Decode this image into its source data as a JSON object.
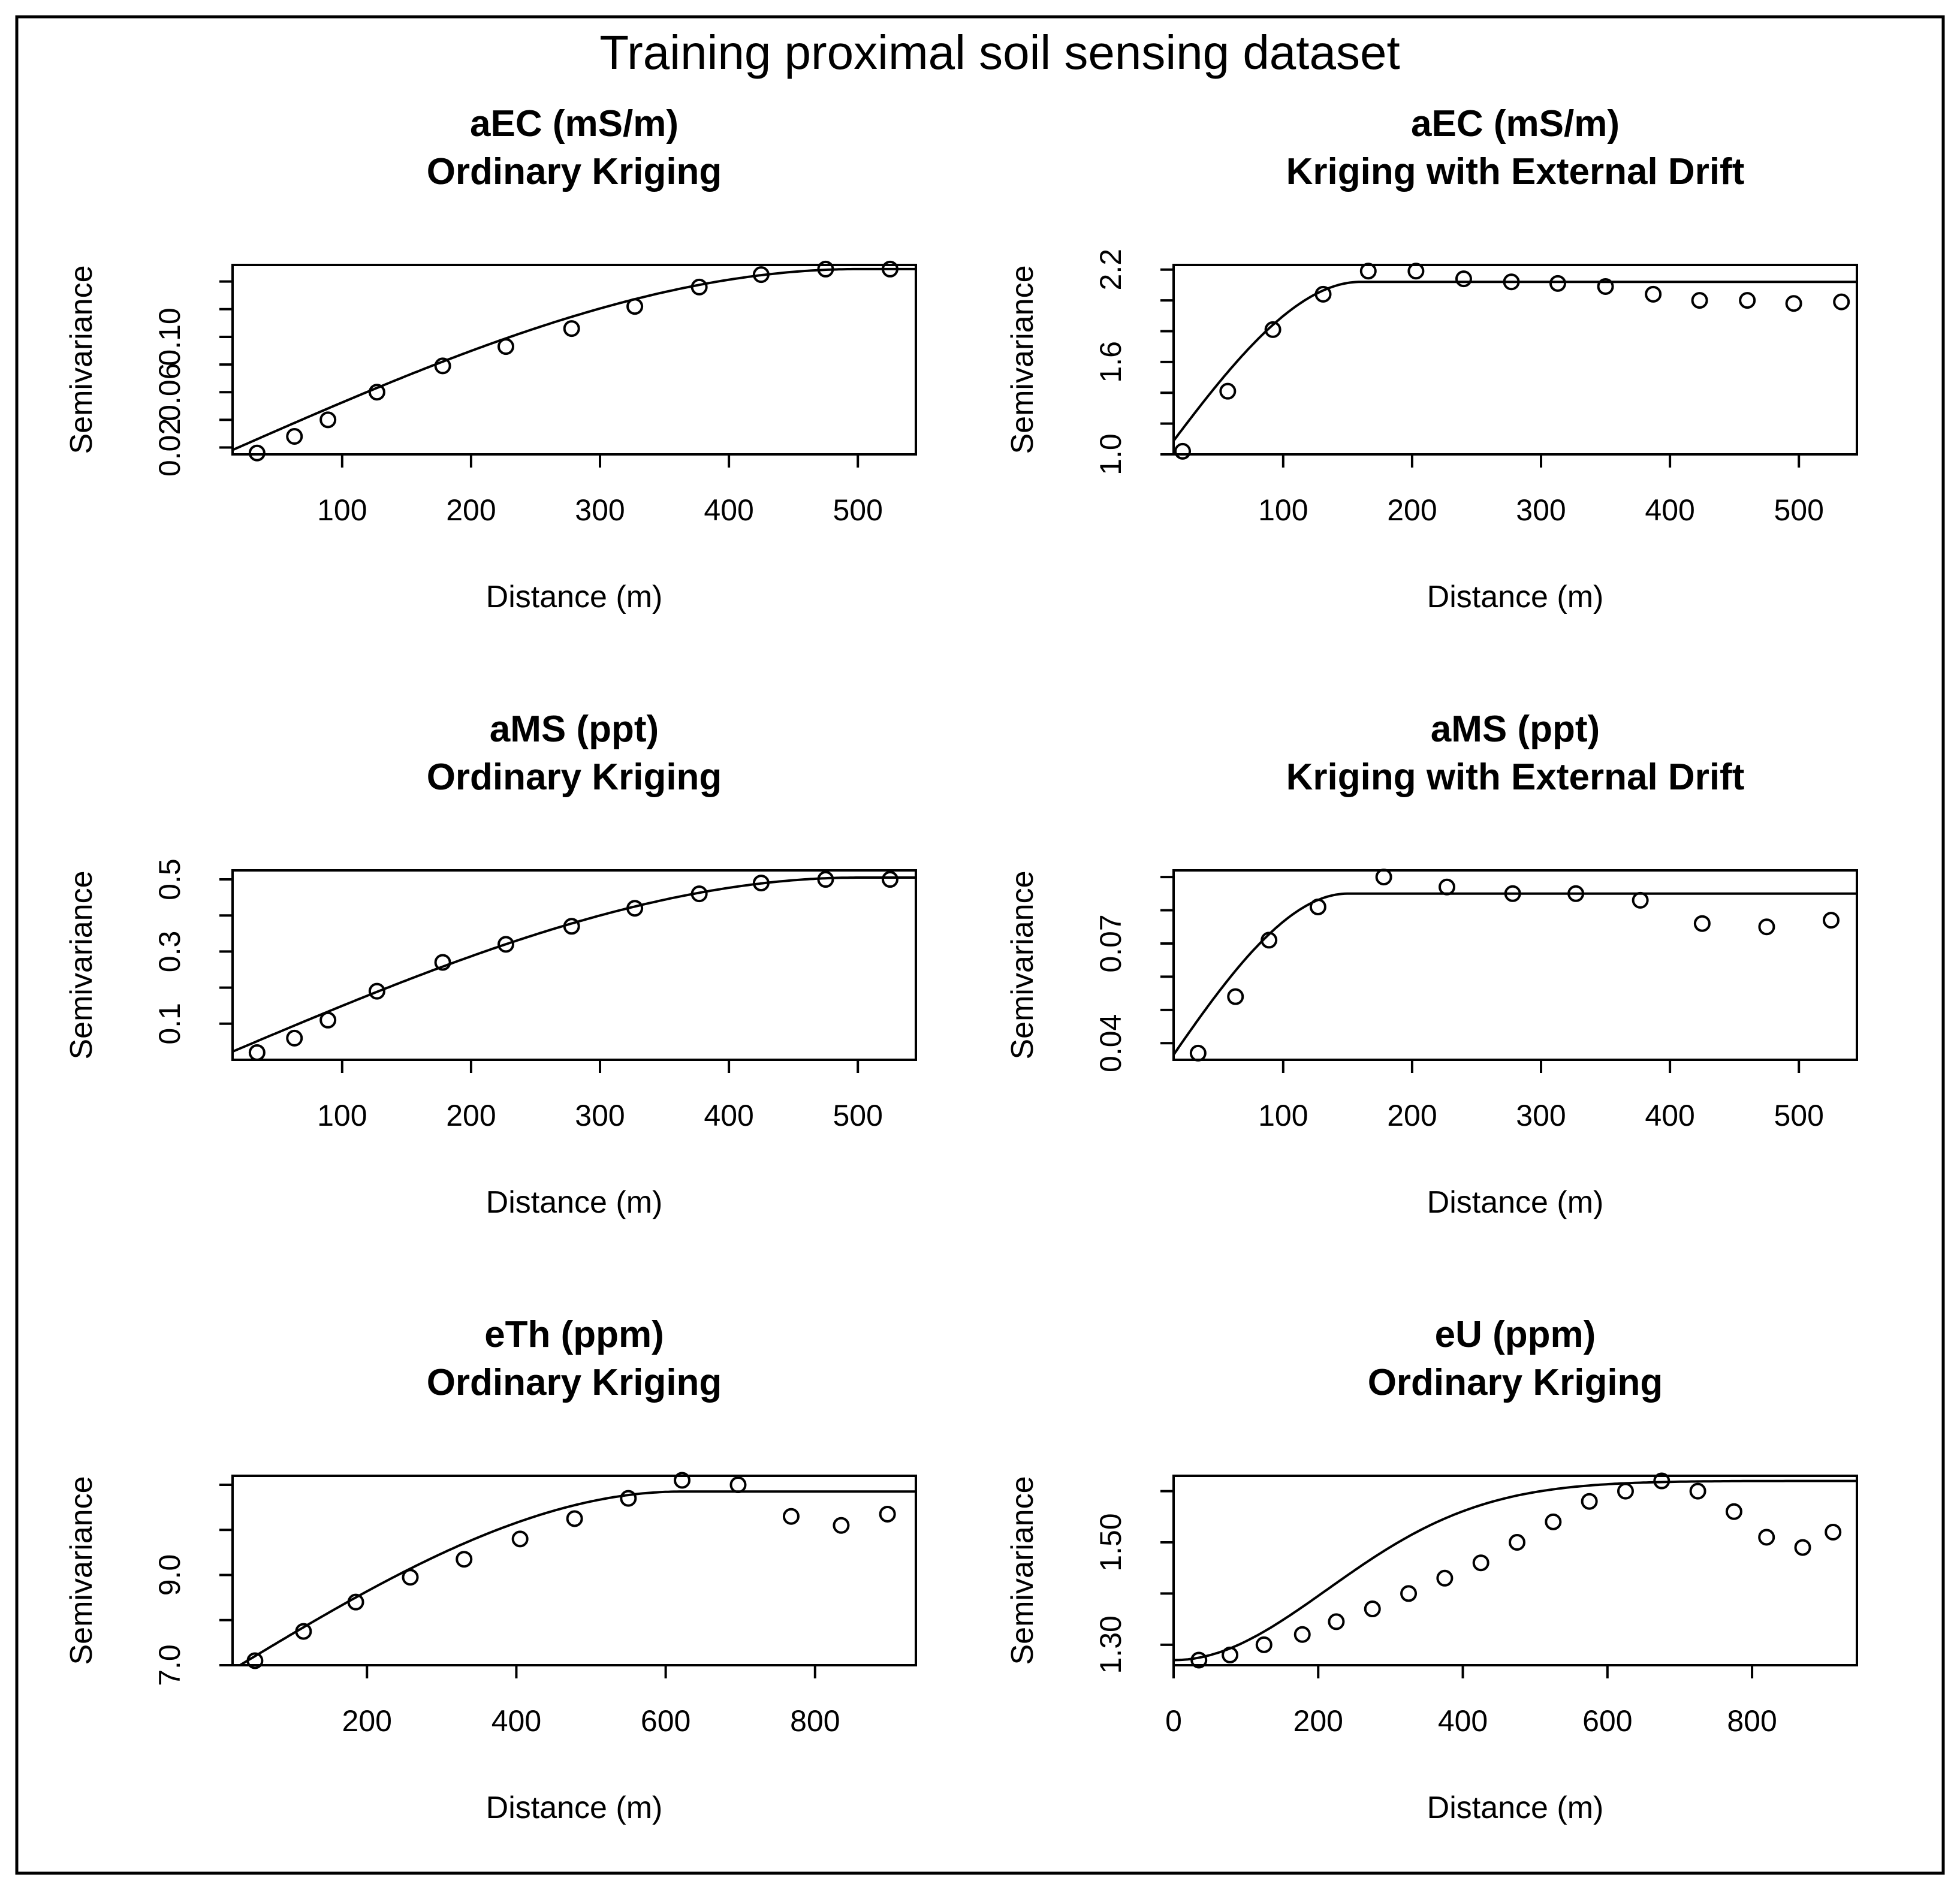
{
  "figure_title": "Training proximal soil sensing dataset",
  "chart_data": [
    {
      "type": "scatter",
      "title": "aEC (mS/m)",
      "subtitle": "Ordinary Kriging",
      "xlabel": "Distance (m)",
      "ylabel": "Semivariance",
      "xlim": [
        15,
        545
      ],
      "ylim": [
        0.015,
        0.152
      ],
      "xticks": [
        100,
        200,
        300,
        400,
        500
      ],
      "yticks": [
        0.02,
        0.04,
        0.06,
        0.08,
        0.1,
        0.12,
        0.14
      ],
      "ytick_labels": [
        "0.02",
        "",
        "0.06",
        "",
        "0.10",
        "",
        ""
      ],
      "points": {
        "x": [
          34,
          63,
          89,
          127,
          178,
          227,
          278,
          327,
          377,
          425,
          475,
          525
        ],
        "y": [
          0.016,
          0.028,
          0.04,
          0.06,
          0.079,
          0.093,
          0.106,
          0.122,
          0.136,
          0.145,
          0.149,
          0.149
        ]
      },
      "model": {
        "type": "spherical",
        "nugget": 0.012,
        "psill": 0.137,
        "range": 500
      }
    },
    {
      "type": "scatter",
      "title": "aEC (mS/m)",
      "subtitle": "Kriging with External Drift",
      "xlabel": "Distance (m)",
      "ylabel": "Semivariance",
      "xlim": [
        15,
        545
      ],
      "ylim": [
        1.0,
        2.23
      ],
      "xticks": [
        100,
        200,
        300,
        400,
        500
      ],
      "yticks": [
        1.0,
        1.2,
        1.4,
        1.6,
        1.8,
        2.0,
        2.2
      ],
      "ytick_labels": [
        "1.0",
        "",
        "",
        "1.6",
        "",
        "",
        "2.2"
      ],
      "points": {
        "x": [
          22,
          57,
          92,
          131,
          166,
          203,
          240,
          277,
          313,
          350,
          387,
          423,
          460,
          496,
          533
        ],
        "y": [
          1.02,
          1.41,
          1.81,
          2.04,
          2.19,
          2.19,
          2.14,
          2.12,
          2.11,
          2.09,
          2.04,
          2.0,
          2.0,
          1.98,
          1.99
        ]
      },
      "model": {
        "type": "spherical",
        "nugget": 0.92,
        "psill": 1.2,
        "range": 160
      }
    },
    {
      "type": "scatter",
      "title": "aMS (ppt)",
      "subtitle": "Ordinary Kriging",
      "xlabel": "Distance (m)",
      "ylabel": "Semivariance",
      "xlim": [
        15,
        545
      ],
      "ylim": [
        0.0,
        0.525
      ],
      "xticks": [
        100,
        200,
        300,
        400,
        500
      ],
      "yticks": [
        0.1,
        0.2,
        0.3,
        0.4,
        0.5
      ],
      "ytick_labels": [
        "0.1",
        "",
        "0.3",
        "",
        "0.5"
      ],
      "points": {
        "x": [
          34,
          63,
          89,
          127,
          178,
          227,
          278,
          327,
          377,
          425,
          475,
          525
        ],
        "y": [
          0.02,
          0.06,
          0.11,
          0.19,
          0.27,
          0.32,
          0.37,
          0.42,
          0.46,
          0.49,
          0.5,
          0.5
        ]
      },
      "model": {
        "type": "spherical",
        "nugget": 0.0,
        "psill": 0.505,
        "range": 500
      }
    },
    {
      "type": "scatter",
      "title": "aMS (ppt)",
      "subtitle": "Kriging with External Drift",
      "xlabel": "Distance (m)",
      "ylabel": "Semivariance",
      "xlim": [
        15,
        545
      ],
      "ylim": [
        0.035,
        0.092
      ],
      "xticks": [
        100,
        200,
        300,
        400,
        500
      ],
      "yticks": [
        0.04,
        0.05,
        0.06,
        0.07,
        0.08,
        0.09
      ],
      "ytick_labels": [
        "0.04",
        "",
        "",
        "0.07",
        "",
        ""
      ],
      "points": {
        "x": [
          34,
          63,
          89,
          127,
          178,
          227,
          278,
          327,
          377,
          425,
          475,
          525
        ],
        "y": [
          0.037,
          0.054,
          0.071,
          0.081,
          0.09,
          0.087,
          0.085,
          0.085,
          0.083,
          0.076,
          0.075,
          0.077
        ]
      },
      "model": {
        "type": "spherical",
        "nugget": 0.028,
        "psill": 0.057,
        "range": 150
      }
    },
    {
      "type": "scatter",
      "title": "eTh (ppm)",
      "subtitle": "Ordinary Kriging",
      "xlabel": "Distance (m)",
      "ylabel": "Semivariance",
      "xlim": [
        20,
        935
      ],
      "ylim": [
        7.0,
        11.2
      ],
      "xticks": [
        200,
        400,
        600,
        800
      ],
      "yticks": [
        7.0,
        8.0,
        9.0,
        10.0,
        11.0
      ],
      "ytick_labels": [
        "7.0",
        "",
        "9.0",
        "",
        ""
      ],
      "points": {
        "x": [
          50,
          115,
          185,
          258,
          330,
          405,
          478,
          550,
          622,
          697,
          768,
          835,
          897
        ],
        "y": [
          7.1,
          7.75,
          8.4,
          8.95,
          9.35,
          9.8,
          10.25,
          10.7,
          11.1,
          11.0,
          10.3,
          10.1,
          10.35
        ]
      },
      "model": {
        "type": "spherical",
        "nugget": 6.7,
        "psill": 4.15,
        "range": 620
      }
    },
    {
      "type": "scatter",
      "title": "eU (ppm)",
      "subtitle": "Ordinary Kriging",
      "xlabel": "Distance (m)",
      "ylabel": "Semivariance",
      "xlim": [
        0,
        945
      ],
      "ylim": [
        1.26,
        1.63
      ],
      "xticks": [
        0,
        200,
        400,
        600,
        800
      ],
      "yticks": [
        1.3,
        1.4,
        1.5,
        1.6
      ],
      "ytick_labels": [
        "1.30",
        "",
        "1.50",
        ""
      ],
      "points": {
        "x": [
          35,
          78,
          125,
          178,
          225,
          275,
          325,
          375,
          425,
          475,
          525,
          575,
          625,
          675,
          725,
          775,
          820,
          870,
          912
        ],
        "y": [
          1.27,
          1.28,
          1.3,
          1.32,
          1.345,
          1.37,
          1.4,
          1.43,
          1.46,
          1.5,
          1.54,
          1.58,
          1.6,
          1.62,
          1.6,
          1.56,
          1.51,
          1.49,
          1.52
        ]
      },
      "model": {
        "type": "gaussian",
        "nugget": 1.27,
        "psill": 0.35,
        "range": 520
      }
    }
  ]
}
